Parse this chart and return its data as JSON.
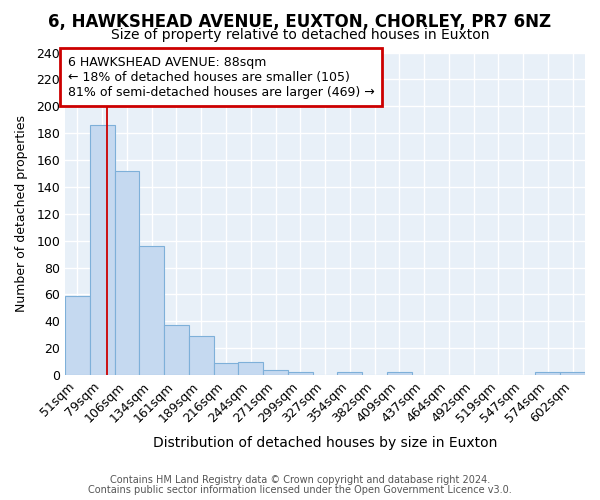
{
  "title1": "6, HAWKSHEAD AVENUE, EUXTON, CHORLEY, PR7 6NZ",
  "title2": "Size of property relative to detached houses in Euxton",
  "xlabel": "Distribution of detached houses by size in Euxton",
  "ylabel": "Number of detached properties",
  "categories": [
    "51sqm",
    "79sqm",
    "106sqm",
    "134sqm",
    "161sqm",
    "189sqm",
    "216sqm",
    "244sqm",
    "271sqm",
    "299sqm",
    "327sqm",
    "354sqm",
    "382sqm",
    "409sqm",
    "437sqm",
    "464sqm",
    "492sqm",
    "519sqm",
    "547sqm",
    "574sqm",
    "602sqm"
  ],
  "values": [
    59,
    186,
    152,
    96,
    37,
    29,
    9,
    10,
    4,
    2,
    0,
    2,
    0,
    2,
    0,
    0,
    0,
    0,
    0,
    2,
    2
  ],
  "bar_color": "#c5d9f0",
  "bar_edge_color": "#7eb0d9",
  "red_line_x": 1.18,
  "annotation_lines": [
    "6 HAWKSHEAD AVENUE: 88sqm",
    "← 18% of detached houses are smaller (105)",
    "81% of semi-detached houses are larger (469) →"
  ],
  "annotation_box_color": "#ffffff",
  "annotation_box_edge": "#cc0000",
  "footer1": "Contains HM Land Registry data © Crown copyright and database right 2024.",
  "footer2": "Contains public sector information licensed under the Open Government Licence v3.0.",
  "ylim": [
    0,
    240
  ],
  "yticks": [
    0,
    20,
    40,
    60,
    80,
    100,
    120,
    140,
    160,
    180,
    200,
    220,
    240
  ],
  "fig_bg_color": "#ffffff",
  "plot_bg_color": "#e8f0f8",
  "grid_color": "#ffffff",
  "title1_fontsize": 12,
  "title2_fontsize": 10,
  "xlabel_fontsize": 10,
  "ylabel_fontsize": 9,
  "tick_fontsize": 9,
  "ann_fontsize": 9
}
